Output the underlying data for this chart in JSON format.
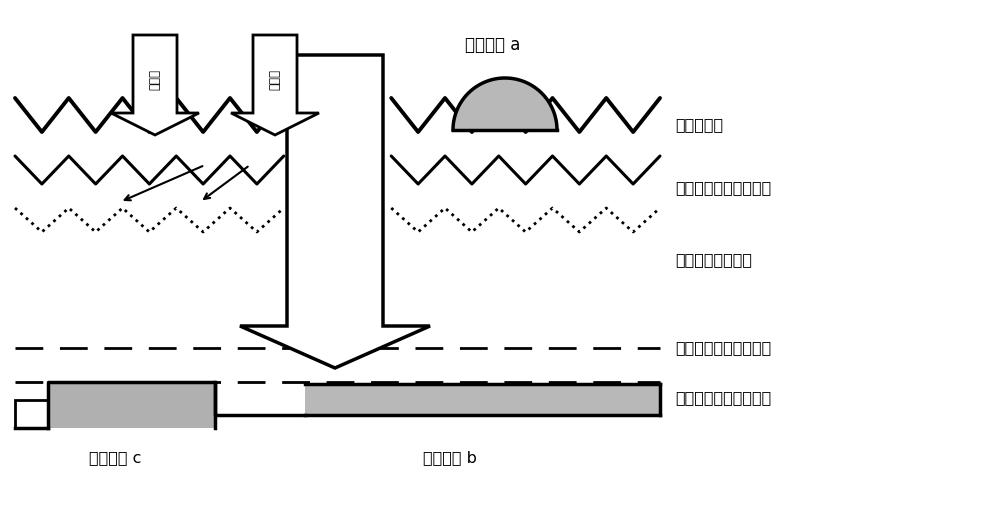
{
  "bg_color": "#ffffff",
  "text_color": "#000000",
  "labels": {
    "electrode_a": "第一电极 a",
    "electrode_b": "第二电极 b",
    "electrode_c": "第三电极 c",
    "layer1": "介质钖化层",
    "layer2": "迎光面第二导电类型层",
    "layer3": "第一导电类型衬底",
    "layer4": "背光面第一导电类型层",
    "layer5": "背光面第二导电类型层",
    "light1": "可见光",
    "light2": "红外光"
  },
  "figsize": [
    10,
    5.2
  ],
  "dpi": 100
}
